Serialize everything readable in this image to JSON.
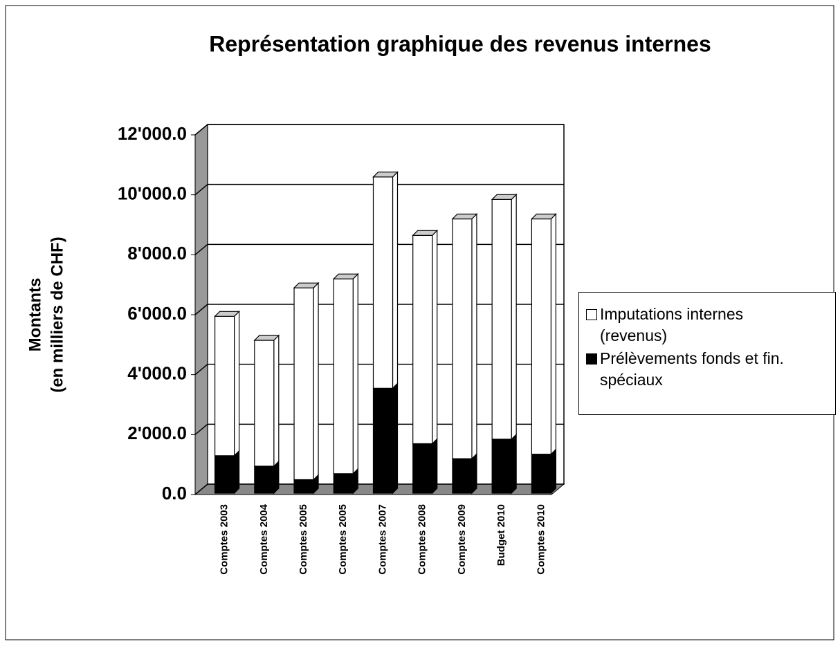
{
  "chart_data": {
    "type": "stacked_bar_3d",
    "title": "Représentation graphique des revenus internes",
    "ylabel": [
      "Montants",
      "(en milliers de CHF)"
    ],
    "categories": [
      "Comptes 2003",
      "Comptes 2004",
      "Comptes 2005",
      "Comptes 2005",
      "Comptes 2007",
      "Comptes 2008",
      "Comptes 2009",
      "Budget 2010",
      "Comptes 2010"
    ],
    "series": [
      {
        "name": "Prélèvements fonds et fin. spéciaux",
        "color": "#000000",
        "values": [
          1250,
          900,
          450,
          650,
          3500,
          1650,
          1150,
          1800,
          1300
        ]
      },
      {
        "name": "Imputations internes (revenus)",
        "color": "#ffffff",
        "values": [
          4650,
          4200,
          6400,
          6500,
          7050,
          6950,
          8000,
          8000,
          7850
        ]
      }
    ],
    "ylim": [
      0,
      12000
    ],
    "yticks": [
      {
        "value": 0,
        "label": "0.0"
      },
      {
        "value": 2000,
        "label": "2'000.0"
      },
      {
        "value": 4000,
        "label": "4'000.0"
      },
      {
        "value": 6000,
        "label": "6'000.0"
      },
      {
        "value": 8000,
        "label": "8'000.0"
      },
      {
        "value": 10000,
        "label": "10'000.0"
      },
      {
        "value": 12000,
        "label": "12'000.0"
      }
    ],
    "grid": true,
    "legend": "right"
  }
}
